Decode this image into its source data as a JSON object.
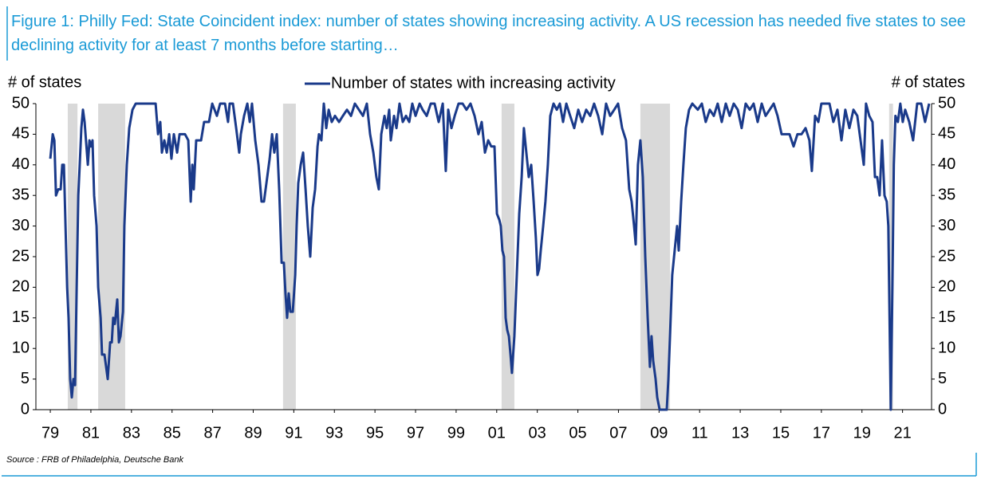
{
  "chart_data": {
    "type": "line",
    "title": "Figure 1: Philly Fed: State Coincident index: number of states showing increasing activity. A US recession has needed five states to see declining activity for at least 7 months before starting…",
    "ylabel": "# of states",
    "y2label": "# of states",
    "source": "Source : FRB of Philadelphia, Deutsche Bank",
    "xlim": [
      1978.29,
      2022.43
    ],
    "ylim": [
      0,
      50
    ],
    "y2lim": [
      0,
      50
    ],
    "yticks": [
      0,
      5,
      10,
      15,
      20,
      25,
      30,
      35,
      40,
      45,
      50
    ],
    "y2ticks": [
      0,
      5,
      10,
      15,
      20,
      25,
      30,
      35,
      40,
      45,
      50
    ],
    "xticks": [
      {
        "value": 1979,
        "label": "79"
      },
      {
        "value": 1981,
        "label": "81"
      },
      {
        "value": 1983,
        "label": "83"
      },
      {
        "value": 1985,
        "label": "85"
      },
      {
        "value": 1987,
        "label": "87"
      },
      {
        "value": 1989,
        "label": "89"
      },
      {
        "value": 1991,
        "label": "91"
      },
      {
        "value": 1993,
        "label": "93"
      },
      {
        "value": 1995,
        "label": "95"
      },
      {
        "value": 1997,
        "label": "97"
      },
      {
        "value": 1999,
        "label": "99"
      },
      {
        "value": 2001,
        "label": "01"
      },
      {
        "value": 2003,
        "label": "03"
      },
      {
        "value": 2005,
        "label": "05"
      },
      {
        "value": 2007,
        "label": "07"
      },
      {
        "value": 2009,
        "label": "09"
      },
      {
        "value": 2011,
        "label": "11"
      },
      {
        "value": 2013,
        "label": "13"
      },
      {
        "value": 2015,
        "label": "15"
      },
      {
        "value": 2017,
        "label": "17"
      },
      {
        "value": 2019,
        "label": "19"
      },
      {
        "value": 2021,
        "label": "21"
      }
    ],
    "recessions": [
      [
        1979.86,
        1980.34
      ],
      [
        1981.36,
        1982.69
      ],
      [
        1990.47,
        1991.1
      ],
      [
        2001.24,
        2001.87
      ],
      [
        2008.08,
        2009.54
      ],
      [
        2020.34,
        2020.53
      ]
    ],
    "recession_color": "#d9d9d9",
    "grid": false,
    "x": [
      1979.0,
      1979.12,
      1979.2,
      1979.28,
      1979.39,
      1979.51,
      1979.59,
      1979.67,
      1979.75,
      1979.83,
      1979.9,
      1979.98,
      1980.06,
      1980.14,
      1980.22,
      1980.3,
      1980.38,
      1980.45,
      1980.53,
      1980.61,
      1980.69,
      1980.85,
      1980.93,
      1981.0,
      1981.08,
      1981.16,
      1981.28,
      1981.36,
      1981.48,
      1981.55,
      1981.67,
      1981.75,
      1981.83,
      1981.95,
      1982.03,
      1982.1,
      1982.18,
      1982.3,
      1982.38,
      1982.46,
      1982.58,
      1982.65,
      1982.77,
      1982.89,
      1983.05,
      1983.21,
      1984.0,
      1984.19,
      1984.31,
      1984.42,
      1984.5,
      1984.62,
      1984.74,
      1984.86,
      1984.97,
      1985.09,
      1985.25,
      1985.37,
      1985.64,
      1985.8,
      1985.92,
      1986.0,
      1986.07,
      1986.19,
      1986.43,
      1986.58,
      1986.82,
      1986.98,
      1987.21,
      1987.37,
      1987.61,
      1987.76,
      1987.84,
      1988.0,
      1988.16,
      1988.31,
      1988.39,
      1988.55,
      1988.71,
      1988.83,
      1988.94,
      1989.1,
      1989.26,
      1989.41,
      1989.53,
      1989.69,
      1989.81,
      1989.93,
      1990.04,
      1990.16,
      1990.28,
      1990.4,
      1990.51,
      1990.59,
      1990.67,
      1990.75,
      1990.83,
      1990.95,
      1991.07,
      1991.14,
      1991.22,
      1991.34,
      1991.46,
      1991.58,
      1991.69,
      1991.81,
      1991.93,
      1992.05,
      1992.17,
      1992.24,
      1992.36,
      1992.48,
      1992.6,
      1992.72,
      1992.87,
      1993.03,
      1993.23,
      1993.42,
      1993.62,
      1993.82,
      1994.01,
      1994.21,
      1994.41,
      1994.6,
      1994.76,
      1994.92,
      1995.07,
      1995.19,
      1995.31,
      1995.47,
      1995.58,
      1995.7,
      1995.78,
      1995.94,
      1996.06,
      1996.21,
      1996.37,
      1996.53,
      1996.69,
      1996.84,
      1997.0,
      1997.2,
      1997.35,
      1997.55,
      1997.75,
      1997.94,
      1998.14,
      1998.34,
      1998.49,
      1998.61,
      1998.77,
      1998.93,
      1999.12,
      1999.32,
      1999.51,
      1999.71,
      1999.91,
      2000.1,
      2000.26,
      2000.42,
      2000.58,
      2000.73,
      2000.89,
      2001.01,
      2001.13,
      2001.2,
      2001.28,
      2001.36,
      2001.44,
      2001.52,
      2001.6,
      2001.68,
      2001.75,
      2001.87,
      2001.99,
      2002.11,
      2002.23,
      2002.34,
      2002.46,
      2002.58,
      2002.7,
      2002.82,
      2002.93,
      2003.01,
      2003.09,
      2003.17,
      2003.29,
      2003.4,
      2003.52,
      2003.64,
      2003.8,
      2003.96,
      2004.11,
      2004.27,
      2004.43,
      2004.62,
      2004.82,
      2005.02,
      2005.21,
      2005.41,
      2005.61,
      2005.8,
      2006.0,
      2006.2,
      2006.39,
      2006.59,
      2006.79,
      2006.98,
      2007.18,
      2007.37,
      2007.53,
      2007.65,
      2007.77,
      2007.85,
      2007.96,
      2008.08,
      2008.2,
      2008.32,
      2008.44,
      2008.55,
      2008.63,
      2008.71,
      2008.83,
      2008.91,
      2009.03,
      2009.38,
      2009.46,
      2009.54,
      2009.65,
      2009.77,
      2009.89,
      2009.97,
      2010.09,
      2010.2,
      2010.32,
      2010.48,
      2010.64,
      2010.91,
      2011.11,
      2011.3,
      2011.5,
      2011.7,
      2011.89,
      2012.09,
      2012.29,
      2012.48,
      2012.68,
      2012.88,
      2013.07,
      2013.27,
      2013.47,
      2013.66,
      2013.86,
      2014.06,
      2014.25,
      2014.45,
      2014.65,
      2014.84,
      2015.04,
      2015.43,
      2015.63,
      2015.82,
      2016.02,
      2016.22,
      2016.41,
      2016.53,
      2016.69,
      2016.85,
      2017.0,
      2017.4,
      2017.59,
      2017.79,
      2017.99,
      2018.18,
      2018.38,
      2018.58,
      2018.77,
      2018.97,
      2019.09,
      2019.2,
      2019.36,
      2019.52,
      2019.64,
      2019.75,
      2019.87,
      2019.99,
      2020.11,
      2020.22,
      2020.3,
      2020.38,
      2020.42,
      2020.5,
      2020.57,
      2020.65,
      2020.77,
      2020.89,
      2021.01,
      2021.13,
      2021.33,
      2021.52,
      2021.72,
      2021.92,
      2022.11,
      2022.31
    ],
    "series": [
      {
        "name": "Number of states with increasing activity",
        "color": "#1a3a8a",
        "values": [
          41,
          45,
          44,
          35,
          36,
          36,
          40,
          40,
          30,
          20,
          15,
          5,
          2,
          5,
          4,
          20,
          35,
          40,
          46,
          49,
          47,
          40,
          44,
          43,
          44,
          35,
          30,
          20,
          15,
          9,
          9,
          7,
          5,
          11,
          11,
          15,
          14,
          18,
          11,
          12,
          16,
          30,
          40,
          46,
          49,
          50,
          50,
          50,
          45,
          47,
          42,
          44,
          42,
          45,
          41,
          45,
          42,
          45,
          45,
          44,
          34,
          40,
          36,
          44,
          44,
          47,
          47,
          50,
          48,
          50,
          50,
          47,
          50,
          50,
          46,
          42,
          45,
          48,
          50,
          47,
          50,
          44,
          40,
          34,
          34,
          38,
          41,
          45,
          42,
          45,
          36,
          24,
          24,
          19,
          15,
          19,
          16,
          16,
          22,
          30,
          37,
          40,
          42,
          36,
          30,
          25,
          33,
          36,
          43,
          45,
          44,
          50,
          46,
          49,
          47,
          48,
          47,
          48,
          49,
          48,
          50,
          49,
          48,
          50,
          45,
          42,
          38,
          36,
          45,
          48,
          46,
          49,
          44,
          48,
          46,
          50,
          47,
          48,
          47,
          50,
          48,
          50,
          49,
          48,
          50,
          50,
          47,
          50,
          39,
          49,
          46,
          48,
          50,
          50,
          49,
          50,
          48,
          45,
          47,
          42,
          44,
          43,
          43,
          32,
          31,
          30,
          26,
          25,
          15,
          13,
          12,
          9,
          6,
          12,
          22,
          32,
          38,
          46,
          42,
          38,
          40,
          34,
          28,
          22,
          23,
          26,
          30,
          34,
          40,
          48,
          50,
          49,
          50,
          47,
          50,
          48,
          46,
          49,
          47,
          49,
          48,
          50,
          48,
          45,
          50,
          48,
          49,
          50,
          46,
          44,
          36,
          34,
          30,
          27,
          40,
          44,
          38,
          25,
          15,
          7,
          12,
          8,
          5,
          2,
          0,
          0,
          5,
          12,
          22,
          26,
          30,
          26,
          34,
          40,
          46,
          49,
          50,
          49,
          50,
          47,
          49,
          48,
          50,
          47,
          50,
          48,
          50,
          49,
          46,
          50,
          49,
          50,
          47,
          50,
          48,
          49,
          50,
          48,
          45,
          45,
          43,
          45,
          45,
          46,
          44,
          39,
          48,
          47,
          50,
          50,
          47,
          49,
          44,
          49,
          46,
          49,
          48,
          43,
          40,
          50,
          48,
          47,
          38,
          38,
          35,
          44,
          35,
          34,
          30,
          10,
          0,
          20,
          40,
          48,
          47,
          50,
          47,
          49,
          47,
          44,
          50,
          50,
          47,
          50
        ]
      }
    ]
  }
}
